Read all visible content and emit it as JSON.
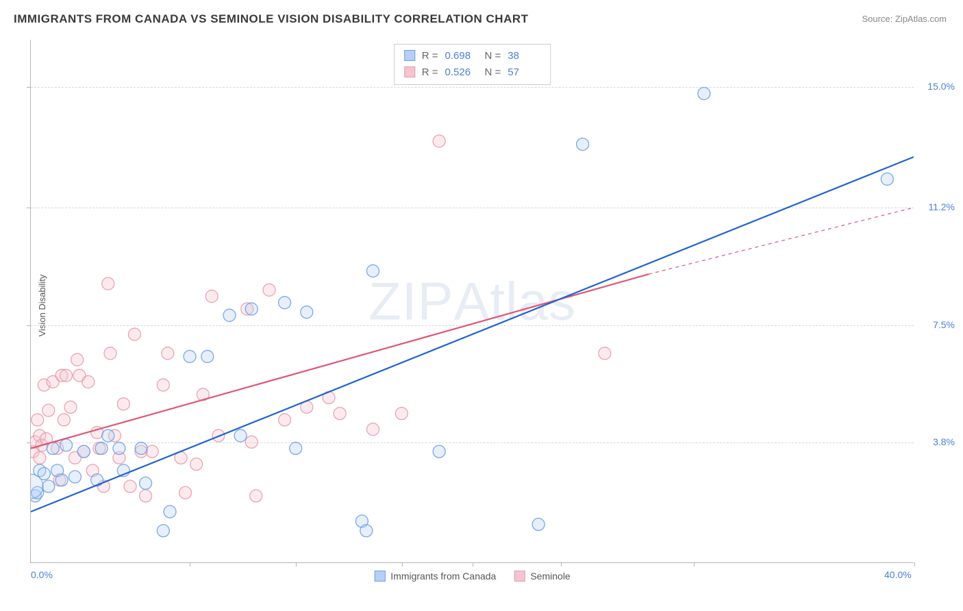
{
  "title": "IMMIGRANTS FROM CANADA VS SEMINOLE VISION DISABILITY CORRELATION CHART",
  "source": "Source: ZipAtlas.com",
  "y_axis_label": "Vision Disability",
  "watermark": "ZIPAtlas",
  "chart": {
    "type": "scatter",
    "xlim": [
      0.0,
      40.0
    ],
    "ylim": [
      0.0,
      16.5
    ],
    "x_ticks": [
      0.0,
      40.0
    ],
    "x_tick_labels": [
      "0.0%",
      "40.0%"
    ],
    "x_minor_ticks_pct": [
      18,
      30,
      42,
      50,
      60,
      75,
      100
    ],
    "y_ticks": [
      3.8,
      7.5,
      11.2,
      15.0
    ],
    "y_tick_labels": [
      "3.8%",
      "7.5%",
      "11.2%",
      "15.0%"
    ],
    "grid_color": "#d8d8d8",
    "background_color": "#ffffff",
    "axis_color": "#b5b5b5",
    "tick_label_color": "#4a7fd4",
    "title_fontsize": 17,
    "label_fontsize": 13,
    "tick_fontsize": 14,
    "marker_radius": 9,
    "marker_opacity": 0.35,
    "marker_stroke_opacity": 0.9,
    "line_width": 2.2
  },
  "series": [
    {
      "name": "Immigrants from Canada",
      "color": "#6b9fe8",
      "fill": "#b7d0f2",
      "line_color": "#1f62d0",
      "r": 0.698,
      "n": 38,
      "regression": {
        "x1": 0.0,
        "y1": 1.6,
        "x2": 40.0,
        "y2": 12.8,
        "dashed_from_x": 40.0
      },
      "points": [
        [
          0.2,
          2.1
        ],
        [
          0.3,
          2.2
        ],
        [
          0.4,
          2.9
        ],
        [
          0.6,
          2.8
        ],
        [
          0.8,
          2.4
        ],
        [
          1.0,
          3.6
        ],
        [
          1.2,
          2.9
        ],
        [
          1.4,
          2.6
        ],
        [
          1.6,
          3.7
        ],
        [
          2.0,
          2.7
        ],
        [
          2.4,
          3.5
        ],
        [
          3.0,
          2.6
        ],
        [
          3.2,
          3.6
        ],
        [
          3.5,
          4.0
        ],
        [
          4.0,
          3.6
        ],
        [
          4.2,
          2.9
        ],
        [
          5.0,
          3.6
        ],
        [
          5.2,
          2.5
        ],
        [
          6.0,
          1.0
        ],
        [
          6.3,
          1.6
        ],
        [
          7.2,
          6.5
        ],
        [
          8.0,
          6.5
        ],
        [
          9.0,
          7.8
        ],
        [
          9.5,
          4.0
        ],
        [
          10.0,
          8.0
        ],
        [
          11.5,
          8.2
        ],
        [
          12.0,
          3.6
        ],
        [
          12.5,
          7.9
        ],
        [
          15.0,
          1.3
        ],
        [
          15.2,
          1.0
        ],
        [
          15.5,
          9.2
        ],
        [
          18.5,
          3.5
        ],
        [
          23.0,
          1.2
        ],
        [
          25.0,
          13.2
        ],
        [
          30.5,
          14.8
        ],
        [
          38.8,
          12.1
        ]
      ],
      "big_point": [
        0.0,
        2.4
      ]
    },
    {
      "name": "Seminole",
      "color": "#e79aaa",
      "fill": "#f5c5cf",
      "line_color": "#e05573",
      "r": 0.526,
      "n": 57,
      "regression": {
        "x1": 0.0,
        "y1": 3.6,
        "x2": 28.0,
        "y2": 9.1,
        "dashed_to_x": 40.0,
        "dashed_to_y": 11.2
      },
      "points": [
        [
          0.1,
          3.5
        ],
        [
          0.2,
          3.8
        ],
        [
          0.3,
          4.5
        ],
        [
          0.4,
          3.3
        ],
        [
          0.4,
          4.0
        ],
        [
          0.5,
          3.7
        ],
        [
          0.6,
          5.6
        ],
        [
          0.7,
          3.9
        ],
        [
          0.8,
          4.8
        ],
        [
          1.0,
          5.7
        ],
        [
          1.2,
          3.6
        ],
        [
          1.3,
          2.6
        ],
        [
          1.4,
          5.9
        ],
        [
          1.5,
          4.5
        ],
        [
          1.6,
          5.9
        ],
        [
          1.8,
          4.9
        ],
        [
          2.0,
          3.3
        ],
        [
          2.1,
          6.4
        ],
        [
          2.2,
          5.9
        ],
        [
          2.4,
          3.5
        ],
        [
          2.6,
          5.7
        ],
        [
          2.8,
          2.9
        ],
        [
          3.0,
          4.1
        ],
        [
          3.1,
          3.6
        ],
        [
          3.3,
          2.4
        ],
        [
          3.5,
          8.8
        ],
        [
          3.6,
          6.6
        ],
        [
          3.8,
          4.0
        ],
        [
          4.0,
          3.3
        ],
        [
          4.2,
          5.0
        ],
        [
          4.5,
          2.4
        ],
        [
          4.7,
          7.2
        ],
        [
          5.0,
          3.5
        ],
        [
          5.2,
          2.1
        ],
        [
          5.5,
          3.5
        ],
        [
          6.0,
          5.6
        ],
        [
          6.2,
          6.6
        ],
        [
          6.8,
          3.3
        ],
        [
          7.0,
          2.2
        ],
        [
          7.5,
          3.1
        ],
        [
          7.8,
          5.3
        ],
        [
          8.2,
          8.4
        ],
        [
          8.5,
          4.0
        ],
        [
          9.8,
          8.0
        ],
        [
          10.0,
          3.8
        ],
        [
          10.2,
          2.1
        ],
        [
          10.8,
          8.6
        ],
        [
          11.5,
          4.5
        ],
        [
          12.5,
          4.9
        ],
        [
          13.5,
          5.2
        ],
        [
          14.0,
          4.7
        ],
        [
          15.5,
          4.2
        ],
        [
          16.8,
          4.7
        ],
        [
          18.5,
          13.3
        ],
        [
          26.0,
          6.6
        ]
      ]
    }
  ],
  "legend_top": {
    "r_label": "R =",
    "n_label": "N ="
  },
  "legend_bottom": {
    "items": [
      "Immigrants from Canada",
      "Seminole"
    ]
  }
}
